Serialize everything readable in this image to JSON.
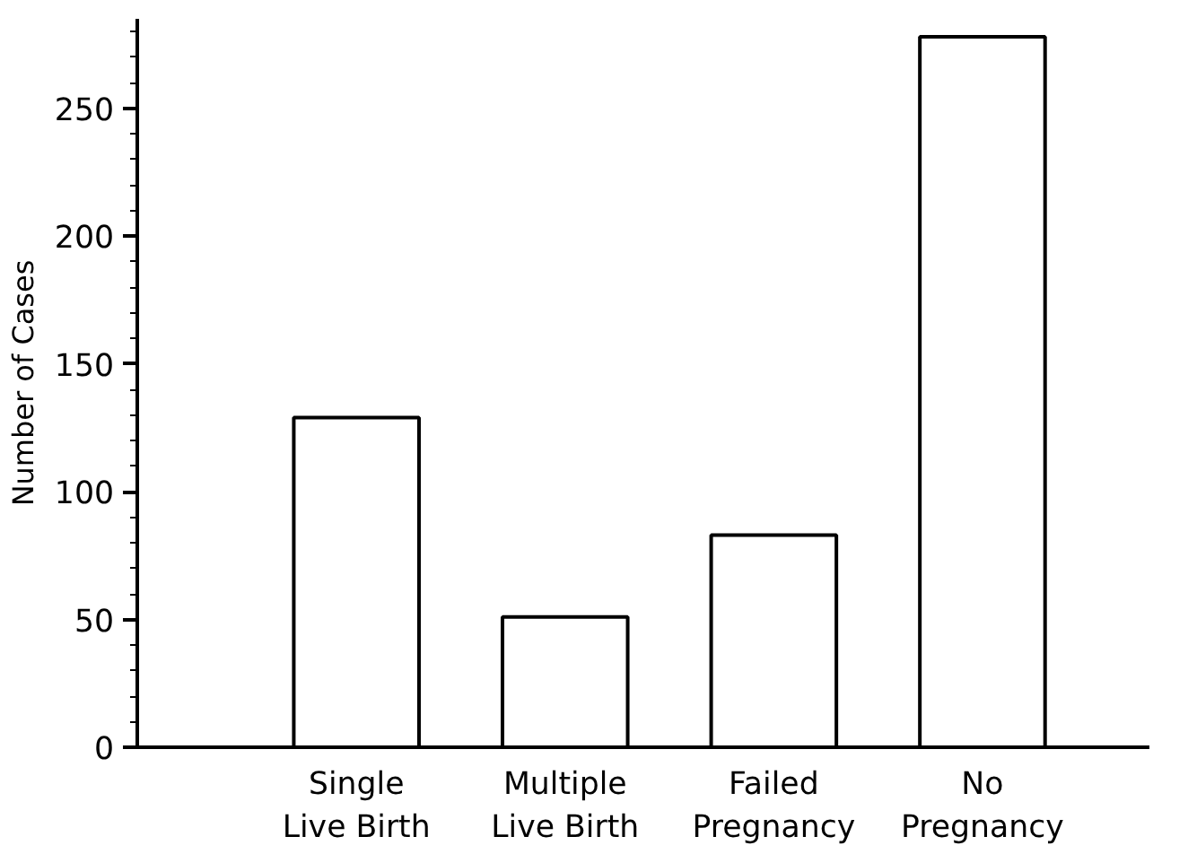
{
  "chart_data": {
    "type": "bar",
    "ylabel": "Number of Cases",
    "categories": [
      "Single\nLive Birth",
      "Multiple\nLive Birth",
      "Failed\nPregnancy",
      "No\nPregnancy"
    ],
    "values": [
      129,
      51,
      83,
      278
    ],
    "color": "#ffffff",
    "ylim": [
      0,
      285
    ],
    "yticks": [
      0,
      50,
      100,
      150,
      200,
      250
    ],
    "grid": false
  }
}
